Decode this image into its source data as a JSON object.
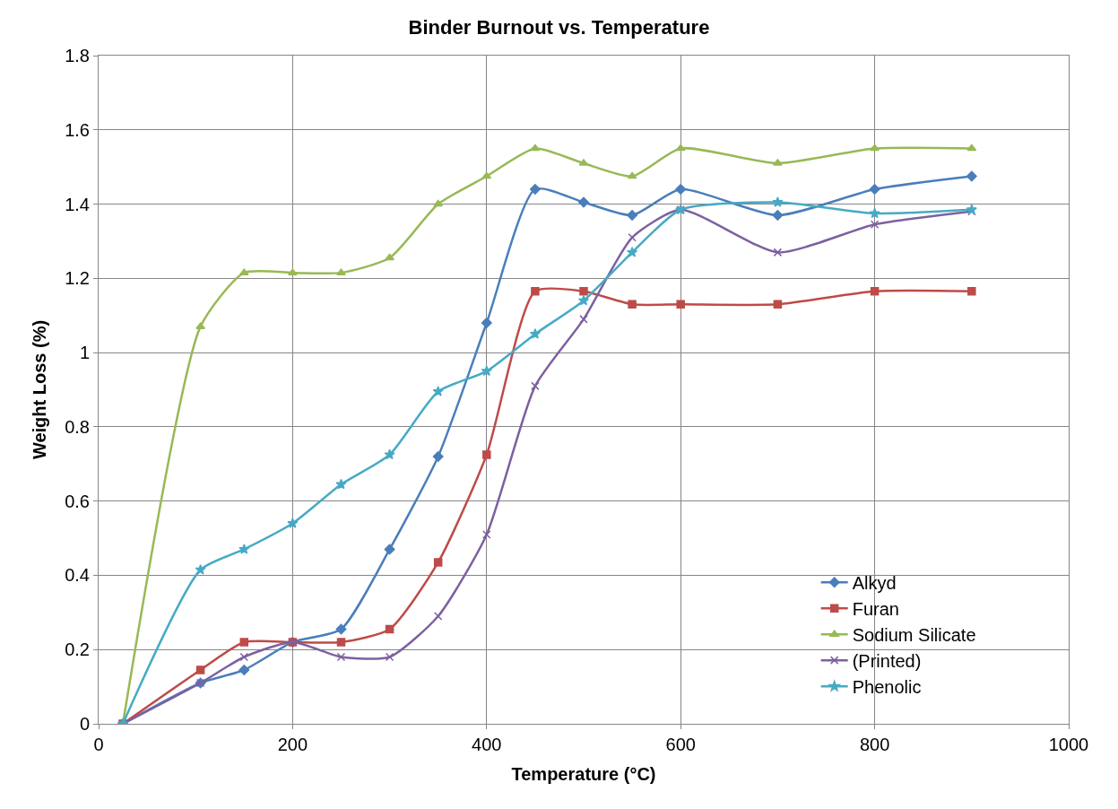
{
  "chart_data": {
    "type": "line",
    "title": "Binder Burnout vs. Temperature",
    "xlabel": "Temperature (°C)",
    "ylabel": "Weight Loss (%)",
    "x": [
      25,
      105,
      150,
      200,
      250,
      300,
      350,
      400,
      450,
      500,
      550,
      600,
      700,
      800,
      900
    ],
    "xlim": [
      0,
      1000
    ],
    "xticks": [
      0,
      200,
      400,
      600,
      800,
      1000
    ],
    "ylim": [
      0,
      1.8
    ],
    "yticks": [
      0,
      0.2,
      0.4,
      0.6,
      0.8,
      1,
      1.2,
      1.4,
      1.6,
      1.8
    ],
    "grid": true,
    "legend": "bottom right",
    "series": [
      {
        "name": "Alkyd",
        "color": "#4a7ebb",
        "marker": "diamond",
        "values": [
          0,
          0.11,
          0.145,
          0.22,
          0.255,
          0.47,
          0.72,
          1.08,
          1.44,
          1.405,
          1.37,
          1.44,
          1.37,
          1.44,
          1.475
        ]
      },
      {
        "name": "Furan",
        "color": "#be4b48",
        "marker": "square",
        "values": [
          0,
          0.145,
          0.22,
          0.22,
          0.22,
          0.255,
          0.435,
          0.725,
          1.165,
          1.165,
          1.13,
          1.13,
          1.13,
          1.165,
          1.165
        ]
      },
      {
        "name": "Sodium Silicate",
        "color": "#98b954",
        "marker": "triangle",
        "values": [
          0,
          1.07,
          1.215,
          1.215,
          1.215,
          1.255,
          1.4,
          1.475,
          1.55,
          1.51,
          1.475,
          1.55,
          1.51,
          1.55,
          1.55
        ]
      },
      {
        "name": "(Printed)",
        "color": "#7d60a0",
        "marker": "cross",
        "values": [
          0,
          0.11,
          0.18,
          0.22,
          0.18,
          0.18,
          0.29,
          0.51,
          0.91,
          1.09,
          1.31,
          1.385,
          1.27,
          1.345,
          1.38
        ]
      },
      {
        "name": "Phenolic",
        "color": "#46aac5",
        "marker": "star",
        "values": [
          0,
          0.415,
          0.47,
          0.54,
          0.645,
          0.725,
          0.895,
          0.95,
          1.05,
          1.14,
          1.27,
          1.385,
          1.405,
          1.375,
          1.385
        ]
      }
    ]
  }
}
